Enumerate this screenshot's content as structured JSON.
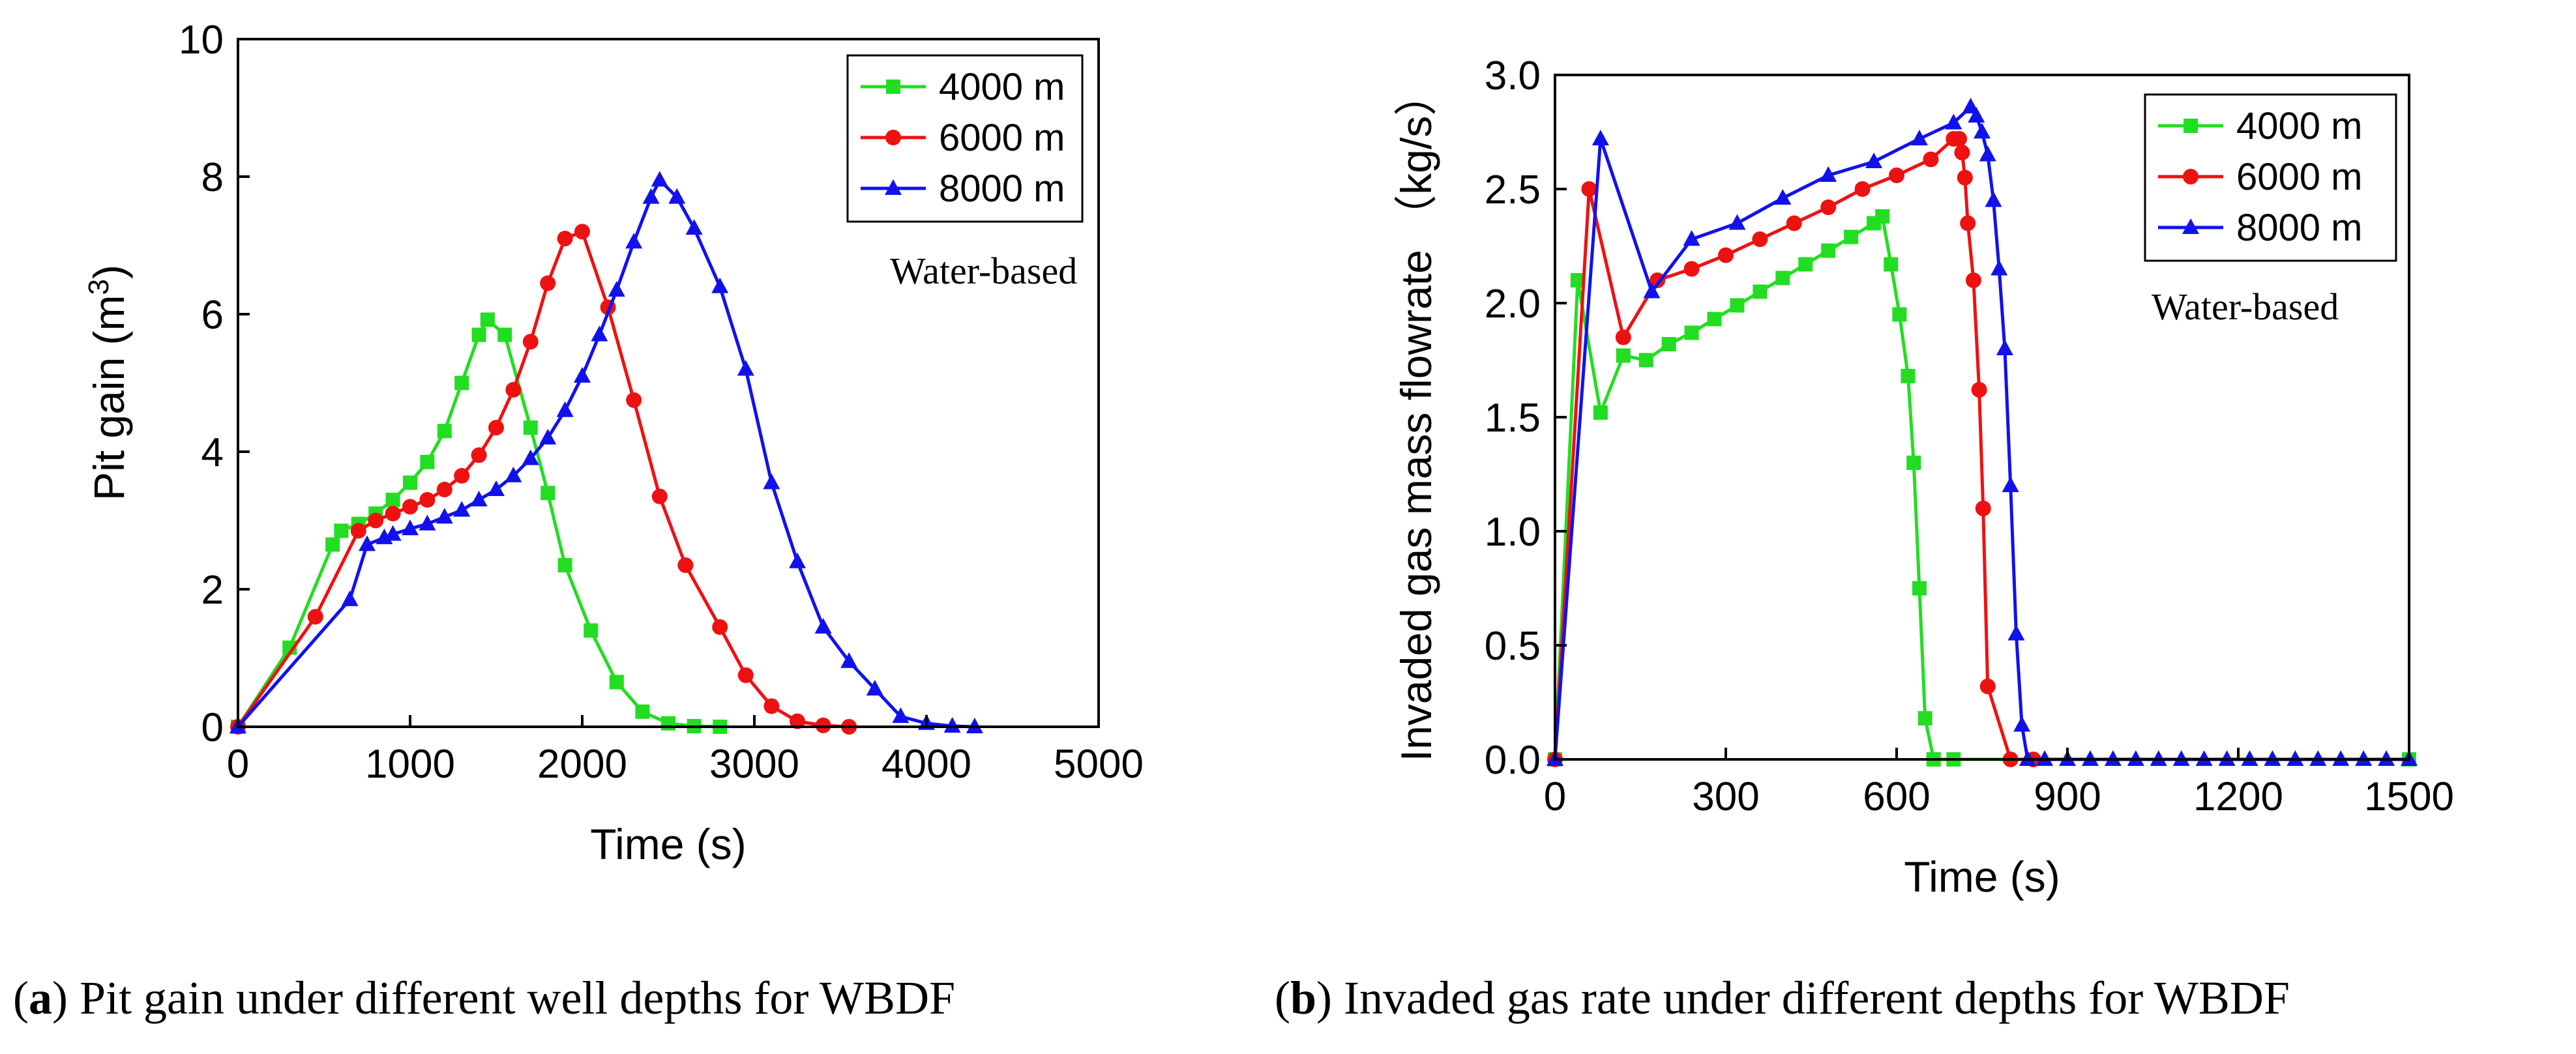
{
  "chart_data": [
    {
      "type": "line",
      "xlabel": "Time (s)",
      "ylabel": "Pit gain (m",
      "ylabel_sup": "3",
      "ylabel_end": ")",
      "xlim": [
        0,
        5000
      ],
      "ylim": [
        0,
        10
      ],
      "xticks": [
        0,
        1000,
        2000,
        3000,
        4000,
        5000
      ],
      "yticks": [
        0,
        2,
        4,
        6,
        8,
        10
      ],
      "xtick_labels": [
        "0",
        "1000",
        "2000",
        "3000",
        "4000",
        "5000"
      ],
      "ytick_labels": [
        "0",
        "2",
        "4",
        "6",
        "8",
        "10"
      ],
      "annotation": "Water-based",
      "legend_position": "top-right",
      "series": [
        {
          "name": "4000 m",
          "color": "#22dd22",
          "marker": "square",
          "x": [
            0,
            300,
            550,
            600,
            700,
            800,
            900,
            1000,
            1100,
            1200,
            1300,
            1400,
            1450,
            1550,
            1700,
            1800,
            1900,
            2050,
            2200,
            2350,
            2500,
            2650,
            2800
          ],
          "y": [
            0,
            1.15,
            2.65,
            2.85,
            2.95,
            3.1,
            3.3,
            3.55,
            3.85,
            4.3,
            5.0,
            5.7,
            5.92,
            5.7,
            4.35,
            3.4,
            2.35,
            1.4,
            0.65,
            0.22,
            0.05,
            0.01,
            0
          ]
        },
        {
          "name": "6000 m",
          "color": "#ee1111",
          "marker": "circle",
          "x": [
            0,
            450,
            700,
            800,
            900,
            1000,
            1100,
            1200,
            1300,
            1400,
            1500,
            1600,
            1700,
            1800,
            1900,
            2000,
            2150,
            2300,
            2450,
            2600,
            2800,
            2950,
            3100,
            3250,
            3400,
            3550
          ],
          "y": [
            0,
            1.6,
            2.85,
            3.0,
            3.1,
            3.2,
            3.3,
            3.45,
            3.65,
            3.95,
            4.35,
            4.9,
            5.6,
            6.45,
            7.1,
            7.2,
            6.1,
            4.75,
            3.35,
            2.35,
            1.45,
            0.75,
            0.3,
            0.08,
            0.02,
            0
          ]
        },
        {
          "name": "8000 m",
          "color": "#1111ee",
          "marker": "triangle",
          "x": [
            0,
            650,
            750,
            850,
            900,
            1000,
            1100,
            1200,
            1300,
            1400,
            1500,
            1600,
            1700,
            1800,
            1900,
            2000,
            2100,
            2200,
            2300,
            2400,
            2450,
            2550,
            2650,
            2800,
            2950,
            3100,
            3250,
            3400,
            3550,
            3700,
            3850,
            4000,
            4150,
            4280
          ],
          "y": [
            0,
            1.85,
            2.65,
            2.75,
            2.8,
            2.88,
            2.95,
            3.05,
            3.15,
            3.3,
            3.45,
            3.65,
            3.9,
            4.2,
            4.6,
            5.1,
            5.7,
            6.35,
            7.05,
            7.7,
            7.95,
            7.7,
            7.25,
            6.4,
            5.2,
            3.55,
            2.4,
            1.45,
            0.95,
            0.55,
            0.15,
            0.05,
            0.01,
            0
          ]
        }
      ]
    },
    {
      "type": "line",
      "xlabel": "Time (s)",
      "ylabel": "Invaded gas mass flowrate （kg/s）",
      "xlim": [
        0,
        1500
      ],
      "ylim": [
        0,
        3.0
      ],
      "xticks": [
        0,
        300,
        600,
        900,
        1200,
        1500
      ],
      "yticks": [
        0,
        0.5,
        1.0,
        1.5,
        2.0,
        2.5,
        3.0
      ],
      "xtick_labels": [
        "0",
        "300",
        "600",
        "900",
        "1200",
        "1500"
      ],
      "ytick_labels": [
        "0.0",
        "0.5",
        "1.0",
        "1.5",
        "2.0",
        "2.5",
        "3.0"
      ],
      "annotation": "Water-based",
      "legend_position": "top-right",
      "series": [
        {
          "name": "4000 m",
          "color": "#22dd22",
          "marker": "square",
          "x": [
            0,
            40,
            80,
            120,
            160,
            200,
            240,
            280,
            320,
            360,
            400,
            440,
            480,
            520,
            560,
            575,
            590,
            605,
            620,
            630,
            640,
            650,
            665,
            700,
            1500
          ],
          "y": [
            0,
            2.1,
            1.52,
            1.77,
            1.75,
            1.82,
            1.87,
            1.93,
            1.99,
            2.05,
            2.11,
            2.17,
            2.23,
            2.29,
            2.35,
            2.38,
            2.17,
            1.95,
            1.68,
            1.3,
            0.75,
            0.18,
            0,
            0,
            0
          ]
        },
        {
          "name": "6000 m",
          "color": "#ee1111",
          "marker": "circle",
          "x": [
            0,
            60,
            120,
            180,
            240,
            300,
            360,
            420,
            480,
            540,
            600,
            660,
            700,
            710,
            715,
            720,
            725,
            735,
            745,
            752,
            760,
            800,
            840
          ],
          "y": [
            0,
            2.5,
            1.85,
            2.1,
            2.15,
            2.21,
            2.28,
            2.35,
            2.42,
            2.5,
            2.56,
            2.63,
            2.72,
            2.72,
            2.66,
            2.55,
            2.35,
            2.1,
            1.62,
            1.1,
            0.32,
            0,
            0
          ]
        },
        {
          "name": "8000 m",
          "color": "#1111ee",
          "marker": "triangle",
          "x": [
            0,
            80,
            170,
            240,
            320,
            400,
            480,
            560,
            640,
            700,
            730,
            740,
            750,
            760,
            770,
            780,
            790,
            800,
            810,
            820,
            830,
            860,
            900,
            940,
            980,
            1020,
            1060,
            1100,
            1140,
            1180,
            1220,
            1260,
            1300,
            1340,
            1380,
            1420,
            1460,
            1500
          ],
          "y": [
            0,
            2.72,
            2.05,
            2.28,
            2.35,
            2.46,
            2.56,
            2.62,
            2.72,
            2.79,
            2.86,
            2.82,
            2.75,
            2.65,
            2.45,
            2.15,
            1.8,
            1.2,
            0.55,
            0.15,
            0,
            0,
            0,
            0,
            0,
            0,
            0,
            0,
            0,
            0,
            0,
            0,
            0,
            0,
            0,
            0,
            0,
            0
          ]
        }
      ]
    }
  ],
  "captions": [
    {
      "label": "a",
      "text": "Pit gain under different well depths for WBDF"
    },
    {
      "label": "b",
      "text": "Invaded gas rate under different depths for WBDF"
    }
  ]
}
